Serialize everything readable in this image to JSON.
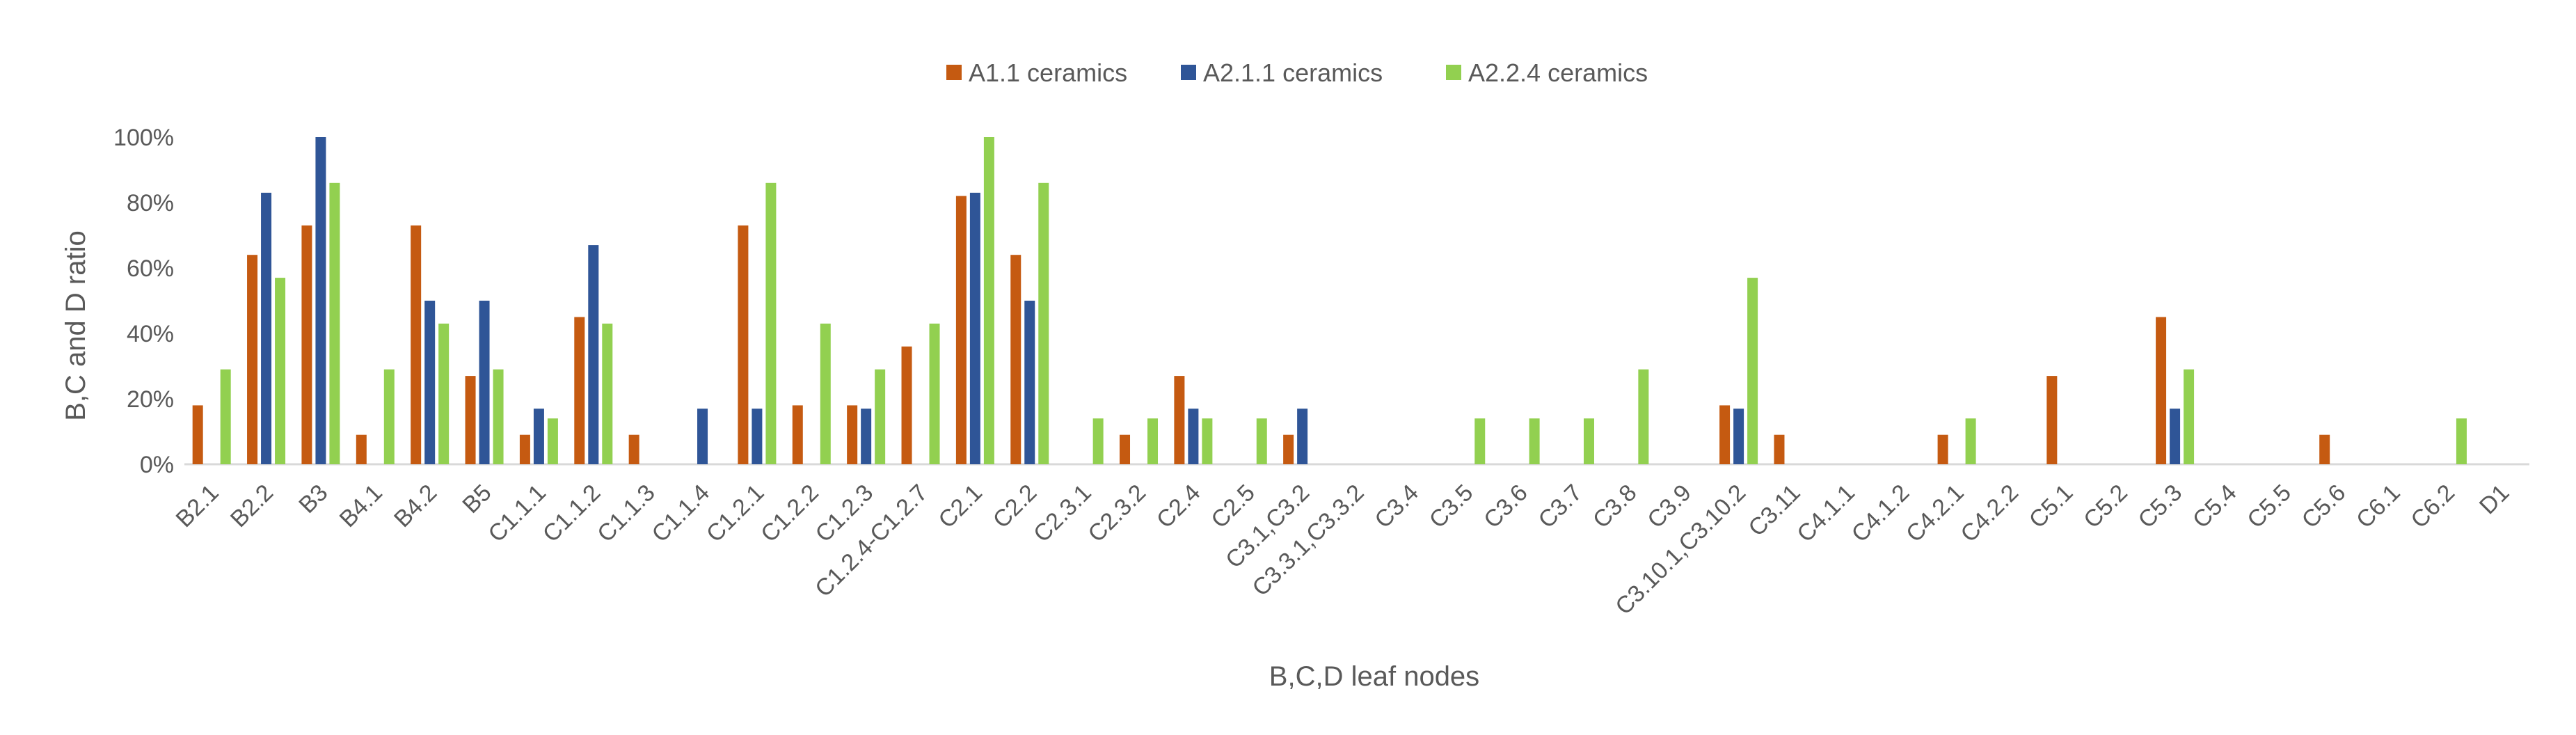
{
  "chart_data": {
    "type": "bar",
    "title": "",
    "xlabel": "B,C,D leaf nodes",
    "ylabel": "B,C and D ratio",
    "ylim": [
      0,
      1
    ],
    "yticks": [
      "0%",
      "20%",
      "40%",
      "60%",
      "80%",
      "100%"
    ],
    "grid": false,
    "legend_position": "top-center",
    "categories": [
      "B2.1",
      "B2.2",
      "B3",
      "B4.1",
      "B4.2",
      "B5",
      "C1.1.1",
      "C1.1.2",
      "C1.1.3",
      "C1.1.4",
      "C1.2.1",
      "C1.2.2",
      "C1.2.3",
      "C1.2.4-C1.2.7",
      "C2.1",
      "C2.2",
      "C2.3.1",
      "C2.3.2",
      "C2.4",
      "C2.5",
      "C3.1,C3.2",
      "C3.3.1,C3.3.2",
      "C3.4",
      "C3.5",
      "C3.6",
      "C3.7",
      "C3.8",
      "C3.9",
      "C3.10.1,C3.10.2",
      "C3.11",
      "C4.1.1",
      "C4.1.2",
      "C4.2.1",
      "C4.2.2",
      "C5.1",
      "C5.2",
      "C5.3",
      "C5.4",
      "C5.5",
      "C5.6",
      "C6.1",
      "C6.2",
      "D1"
    ],
    "series": [
      {
        "name": "A1.1 ceramics",
        "color": "#C55A11",
        "values": [
          0.18,
          0.64,
          0.73,
          0.09,
          0.73,
          0.27,
          0.09,
          0.45,
          0.09,
          0,
          0.73,
          0.18,
          0.18,
          0.36,
          0.82,
          0.64,
          0,
          0.09,
          0.27,
          0,
          0.09,
          0,
          0,
          0,
          0,
          0,
          0,
          0,
          0.18,
          0.09,
          0,
          0,
          0.09,
          0,
          0.27,
          0,
          0.45,
          0,
          0,
          0.09,
          0,
          0,
          0
        ]
      },
      {
        "name": "A2.1.1 ceramics",
        "color": "#2F5597",
        "values": [
          0,
          0.83,
          1.0,
          0,
          0.5,
          0.5,
          0.17,
          0.67,
          0,
          0.17,
          0.17,
          0,
          0.17,
          0,
          0.83,
          0.5,
          0,
          0,
          0.17,
          0,
          0.17,
          0,
          0,
          0,
          0,
          0,
          0,
          0,
          0.17,
          0,
          0,
          0,
          0,
          0,
          0,
          0,
          0.17,
          0,
          0,
          0,
          0,
          0,
          0
        ]
      },
      {
        "name": "A2.2.4 ceramics",
        "color": "#92D050",
        "values": [
          0.29,
          0.57,
          0.86,
          0.29,
          0.43,
          0.29,
          0.14,
          0.43,
          0,
          0,
          0.86,
          0.43,
          0.29,
          0.43,
          1.0,
          0.86,
          0.14,
          0.14,
          0.14,
          0.14,
          0,
          0,
          0,
          0.14,
          0.14,
          0.14,
          0.29,
          0,
          0.57,
          0,
          0,
          0,
          0.14,
          0,
          0,
          0,
          0.29,
          0,
          0,
          0,
          0,
          0.14,
          0
        ]
      }
    ]
  }
}
